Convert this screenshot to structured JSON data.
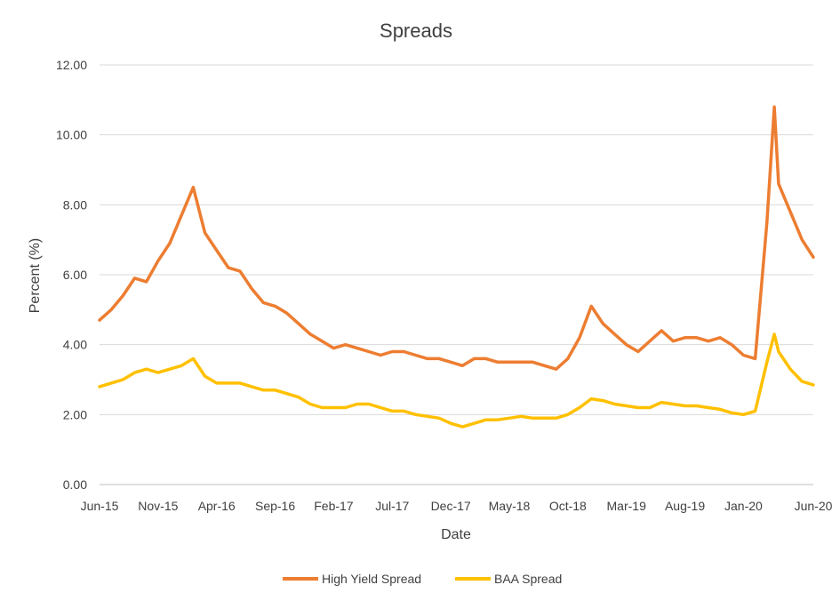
{
  "chart_data": {
    "type": "line",
    "title": "Spreads",
    "xlabel": "Date",
    "ylabel": "Percent (%)",
    "ylim": [
      0,
      12
    ],
    "y_ticks": [
      "0.00",
      "2.00",
      "4.00",
      "6.00",
      "8.00",
      "10.00",
      "12.00"
    ],
    "x_ticks": [
      "Jun-15",
      "Nov-15",
      "Apr-16",
      "Sep-16",
      "Feb-17",
      "Jul-17",
      "Dec-17",
      "May-18",
      "Oct-18",
      "Mar-19",
      "Aug-19",
      "Jan-20",
      "Jun-20"
    ],
    "grid": "horizontal",
    "legend_position": "bottom",
    "series": [
      {
        "name": "High Yield Spread",
        "color": "#ED7D31",
        "points": [
          [
            "2015-06",
            4.7
          ],
          [
            "2015-07",
            5.0
          ],
          [
            "2015-08",
            5.4
          ],
          [
            "2015-09",
            5.9
          ],
          [
            "2015-10",
            5.8
          ],
          [
            "2015-11",
            6.4
          ],
          [
            "2015-12",
            6.9
          ],
          [
            "2016-01",
            7.7
          ],
          [
            "2016-02",
            8.5
          ],
          [
            "2016-03",
            7.2
          ],
          [
            "2016-04",
            6.7
          ],
          [
            "2016-05",
            6.2
          ],
          [
            "2016-06",
            6.1
          ],
          [
            "2016-07",
            5.6
          ],
          [
            "2016-08",
            5.2
          ],
          [
            "2016-09",
            5.1
          ],
          [
            "2016-10",
            4.9
          ],
          [
            "2016-11",
            4.6
          ],
          [
            "2016-12",
            4.3
          ],
          [
            "2017-01",
            4.1
          ],
          [
            "2017-02",
            3.9
          ],
          [
            "2017-03",
            4.0
          ],
          [
            "2017-04",
            3.9
          ],
          [
            "2017-05",
            3.8
          ],
          [
            "2017-06",
            3.7
          ],
          [
            "2017-07",
            3.8
          ],
          [
            "2017-08",
            3.8
          ],
          [
            "2017-09",
            3.7
          ],
          [
            "2017-10",
            3.6
          ],
          [
            "2017-11",
            3.6
          ],
          [
            "2017-12",
            3.5
          ],
          [
            "2018-01",
            3.4
          ],
          [
            "2018-02",
            3.6
          ],
          [
            "2018-03",
            3.6
          ],
          [
            "2018-04",
            3.5
          ],
          [
            "2018-05",
            3.5
          ],
          [
            "2018-06",
            3.5
          ],
          [
            "2018-07",
            3.5
          ],
          [
            "2018-08",
            3.4
          ],
          [
            "2018-09",
            3.3
          ],
          [
            "2018-10",
            3.6
          ],
          [
            "2018-11",
            4.2
          ],
          [
            "2018-12",
            5.1
          ],
          [
            "2019-01",
            4.6
          ],
          [
            "2019-02",
            4.3
          ],
          [
            "2019-03",
            4.0
          ],
          [
            "2019-04",
            3.8
          ],
          [
            "2019-05",
            4.1
          ],
          [
            "2019-06",
            4.4
          ],
          [
            "2019-07",
            4.1
          ],
          [
            "2019-08",
            4.2
          ],
          [
            "2019-09",
            4.2
          ],
          [
            "2019-10",
            4.1
          ],
          [
            "2019-11",
            4.2
          ],
          [
            "2019-12",
            4.0
          ],
          [
            "2020-01",
            3.7
          ],
          [
            "2020-02",
            3.6
          ],
          [
            "2020-03",
            7.5
          ],
          [
            "2020-03-20",
            10.8
          ],
          [
            "2020-04",
            8.6
          ],
          [
            "2020-05",
            7.8
          ],
          [
            "2020-06",
            7.0
          ],
          [
            "2020-06-30",
            6.5
          ]
        ]
      },
      {
        "name": "BAA Spread",
        "color": "#FFC000",
        "points": [
          [
            "2015-06",
            2.8
          ],
          [
            "2015-07",
            2.9
          ],
          [
            "2015-08",
            3.0
          ],
          [
            "2015-09",
            3.2
          ],
          [
            "2015-10",
            3.3
          ],
          [
            "2015-11",
            3.2
          ],
          [
            "2015-12",
            3.3
          ],
          [
            "2016-01",
            3.4
          ],
          [
            "2016-02",
            3.6
          ],
          [
            "2016-03",
            3.1
          ],
          [
            "2016-04",
            2.9
          ],
          [
            "2016-05",
            2.9
          ],
          [
            "2016-06",
            2.9
          ],
          [
            "2016-07",
            2.8
          ],
          [
            "2016-08",
            2.7
          ],
          [
            "2016-09",
            2.7
          ],
          [
            "2016-10",
            2.6
          ],
          [
            "2016-11",
            2.5
          ],
          [
            "2016-12",
            2.3
          ],
          [
            "2017-01",
            2.2
          ],
          [
            "2017-02",
            2.2
          ],
          [
            "2017-03",
            2.2
          ],
          [
            "2017-04",
            2.3
          ],
          [
            "2017-05",
            2.3
          ],
          [
            "2017-06",
            2.2
          ],
          [
            "2017-07",
            2.1
          ],
          [
            "2017-08",
            2.1
          ],
          [
            "2017-09",
            2.0
          ],
          [
            "2017-10",
            1.95
          ],
          [
            "2017-11",
            1.9
          ],
          [
            "2017-12",
            1.75
          ],
          [
            "2018-01",
            1.65
          ],
          [
            "2018-02",
            1.75
          ],
          [
            "2018-03",
            1.85
          ],
          [
            "2018-04",
            1.85
          ],
          [
            "2018-05",
            1.9
          ],
          [
            "2018-06",
            1.95
          ],
          [
            "2018-07",
            1.9
          ],
          [
            "2018-08",
            1.9
          ],
          [
            "2018-09",
            1.9
          ],
          [
            "2018-10",
            2.0
          ],
          [
            "2018-11",
            2.2
          ],
          [
            "2018-12",
            2.45
          ],
          [
            "2019-01",
            2.4
          ],
          [
            "2019-02",
            2.3
          ],
          [
            "2019-03",
            2.25
          ],
          [
            "2019-04",
            2.2
          ],
          [
            "2019-05",
            2.2
          ],
          [
            "2019-06",
            2.35
          ],
          [
            "2019-07",
            2.3
          ],
          [
            "2019-08",
            2.25
          ],
          [
            "2019-09",
            2.25
          ],
          [
            "2019-10",
            2.2
          ],
          [
            "2019-11",
            2.15
          ],
          [
            "2019-12",
            2.05
          ],
          [
            "2020-01",
            2.0
          ],
          [
            "2020-02",
            2.1
          ],
          [
            "2020-03",
            3.5
          ],
          [
            "2020-03-20",
            4.3
          ],
          [
            "2020-04",
            3.8
          ],
          [
            "2020-05",
            3.3
          ],
          [
            "2020-06",
            2.95
          ],
          [
            "2020-06-30",
            2.85
          ]
        ]
      }
    ]
  }
}
